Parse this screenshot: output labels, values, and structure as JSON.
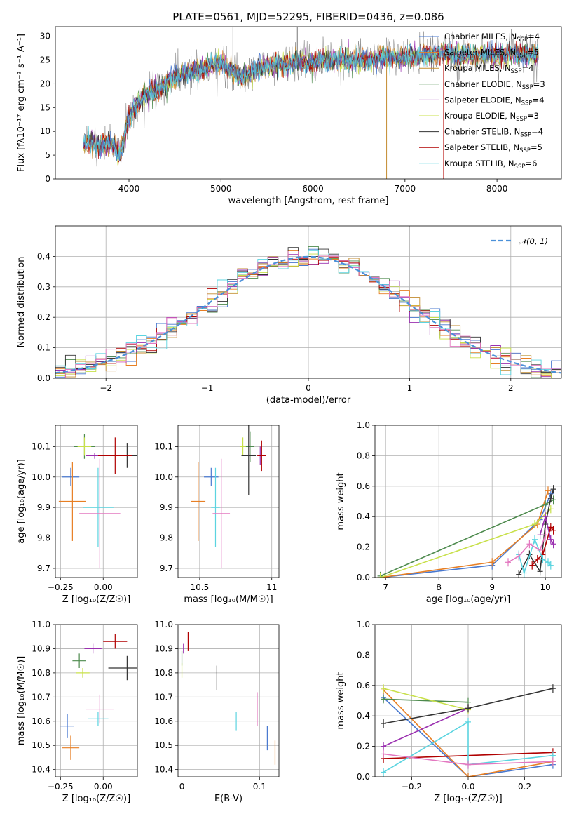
{
  "figure": {
    "title": "PLATE=0561, MJD=52295, FIBERID=0436, z=0.086"
  },
  "colors": {
    "series": [
      "#4878cf",
      "#e77f24",
      "#c38b2f",
      "#4d8a4d",
      "#9b30b0",
      "#c8e04a",
      "#333333",
      "#b00000",
      "#5bd4e0",
      "#e378c0",
      "#777777"
    ],
    "gaussian": "#4a90d9",
    "grid": "#b0b0b0"
  },
  "icons": [],
  "chart_data": [
    {
      "id": "spectrum",
      "type": "line",
      "xlabel": "wavelength [Angstrom, rest frame]",
      "ylabel": "Flux [fλ10⁻¹⁷ erg cm⁻² s⁻¹ A⁻¹]",
      "xlim": [
        3200,
        8700
      ],
      "ylim": [
        0,
        32
      ],
      "xticks": [
        4000,
        5000,
        6000,
        7000,
        8000
      ],
      "yticks": [
        0,
        5,
        10,
        15,
        20,
        25,
        30
      ],
      "grid": false,
      "legend_position": "right",
      "continuum": {
        "x": [
          3500,
          3600,
          3700,
          3800,
          3900,
          3950,
          4000,
          4100,
          4200,
          4300,
          4400,
          4500,
          4600,
          4800,
          5000,
          5100,
          5200,
          5400,
          5600,
          5800,
          6000,
          6200,
          6400,
          6600,
          6800,
          7000,
          7200,
          7400,
          7600,
          7800,
          8000,
          8200,
          8400
        ],
        "y": [
          7,
          8,
          7,
          7.5,
          5,
          9,
          13,
          16,
          18,
          18.5,
          20,
          21.5,
          22,
          23,
          24.5,
          23,
          21.5,
          23,
          24,
          24.5,
          24.5,
          25,
          25,
          25,
          25.5,
          25.5,
          26,
          26.5,
          26,
          26,
          26,
          26.5,
          26
        ]
      },
      "series": [
        {
          "name": "Chabrier MILES, N_SSP=4"
        },
        {
          "name": "Salpeter MILES, N_SSP=5"
        },
        {
          "name": "Kroupa MILES, N_SSP=4"
        },
        {
          "name": "Chabrier ELODIE, N_SSP=3"
        },
        {
          "name": "Salpeter ELODIE, N_SSP=4"
        },
        {
          "name": "Kroupa ELODIE, N_SSP=3"
        },
        {
          "name": "Chabrier STELIB, N_SSP=4"
        },
        {
          "name": "Salpeter STELIB, N_SSP=5"
        },
        {
          "name": "Kroupa STELIB, N_SSP=6"
        }
      ],
      "legend": [
        {
          "label": "Chabrier MILES, N",
          "sub": "SSP",
          "suffix": "=4"
        },
        {
          "label": "Salpeter MILES, N",
          "sub": "SSP",
          "suffix": "=5"
        },
        {
          "label": "Kroupa MILES, N",
          "sub": "SSP",
          "suffix": "=4"
        },
        {
          "label": "Chabrier ELODIE, N",
          "sub": "SSP",
          "suffix": "=3"
        },
        {
          "label": "Salpeter ELODIE, N",
          "sub": "SSP",
          "suffix": "=4"
        },
        {
          "label": "Kroupa ELODIE, N",
          "sub": "SSP",
          "suffix": "=3"
        },
        {
          "label": "Chabrier STELIB, N",
          "sub": "SSP",
          "suffix": "=4"
        },
        {
          "label": "Salpeter STELIB, N",
          "sub": "SSP",
          "suffix": "=5"
        },
        {
          "label": "Kroupa STELIB, N",
          "sub": "SSP",
          "suffix": "=6"
        }
      ],
      "spikes": [
        {
          "x": 5130,
          "y": 32,
          "series": 10
        },
        {
          "x": 5830,
          "y": 32,
          "series": 10
        },
        {
          "x": 6800,
          "y": 0,
          "series": 2
        },
        {
          "x": 7420,
          "y": 0,
          "series": 1
        },
        {
          "x": 7420,
          "y": 0,
          "series": 7
        }
      ]
    },
    {
      "id": "residuals",
      "type": "line",
      "xlabel": "(data-model)/error",
      "ylabel": "Normed distribution",
      "xlim": [
        -2.5,
        2.5
      ],
      "ylim": [
        0,
        0.5
      ],
      "xticks": [
        -2,
        -1,
        0,
        1,
        2
      ],
      "yticks": [
        0.0,
        0.1,
        0.2,
        0.3,
        0.4
      ],
      "grid": true,
      "legend_position": "top-right",
      "gaussian_label": "𝒩(0, 1)",
      "bin_width": 0.1
    },
    {
      "id": "age-vs-Z",
      "type": "scatter",
      "xlabel": "Z [log₁₀(Z/Z☉)]",
      "ylabel": "age  [log₁₀(age/yr)]",
      "xlim": [
        -0.28,
        0.2
      ],
      "ylim": [
        9.67,
        10.17
      ],
      "xticks": [
        -0.25,
        0.0
      ],
      "xticklabels": [
        "−0.25",
        "0.00"
      ],
      "yticks": [
        9.7,
        9.8,
        9.9,
        10.0,
        10.1
      ],
      "grid": true,
      "points": [
        {
          "x": -0.19,
          "xerr": 0.05,
          "y": 10.0,
          "yerr": 0.03,
          "series": 0
        },
        {
          "x": -0.18,
          "xerr": 0.08,
          "y": 9.92,
          "yerr": 0.13,
          "series": 1
        },
        {
          "x": -0.11,
          "xerr": 0.06,
          "y": 10.1,
          "yerr": 0.04,
          "series": 3
        },
        {
          "x": -0.05,
          "xerr": 0.05,
          "y": 10.07,
          "yerr": 0.01,
          "series": 4
        },
        {
          "x": -0.11,
          "xerr": 0.04,
          "y": 10.1,
          "yerr": 0.03,
          "series": 5
        },
        {
          "x": 0.14,
          "xerr": 0.09,
          "y": 10.07,
          "yerr": 0.04,
          "series": 6
        },
        {
          "x": 0.07,
          "xerr": 0.1,
          "y": 10.07,
          "yerr": 0.06,
          "series": 7
        },
        {
          "x": -0.03,
          "xerr": 0.09,
          "y": 9.9,
          "yerr": 0.13,
          "series": 8
        },
        {
          "x": -0.02,
          "xerr": 0.12,
          "y": 9.88,
          "yerr": 0.18,
          "series": 9
        }
      ]
    },
    {
      "id": "age-vs-mass",
      "type": "scatter",
      "xlabel": "mass [log₁₀(M/M☉)]",
      "ylabel": "",
      "xlim": [
        10.35,
        11.05
      ],
      "ylim": [
        9.67,
        10.17
      ],
      "xticks": [
        10.5,
        11.0
      ],
      "yticks": [
        9.7,
        9.8,
        9.9,
        10.0,
        10.1
      ],
      "grid": true,
      "points": [
        {
          "x": 10.58,
          "xerr": 0.05,
          "y": 10.0,
          "yerr": 0.03,
          "series": 0
        },
        {
          "x": 10.49,
          "xerr": 0.05,
          "y": 9.92,
          "yerr": 0.13,
          "series": 1
        },
        {
          "x": 10.85,
          "xerr": 0.03,
          "y": 10.1,
          "yerr": 0.05,
          "series": 3
        },
        {
          "x": 10.92,
          "xerr": 0.02,
          "y": 10.07,
          "yerr": 0.03,
          "series": 4
        },
        {
          "x": 10.8,
          "xerr": 0.02,
          "y": 10.1,
          "yerr": 0.03,
          "series": 5
        },
        {
          "x": 10.84,
          "xerr": 0.05,
          "y": 10.07,
          "yerr": 0.13,
          "series": 6
        },
        {
          "x": 10.93,
          "xerr": 0.03,
          "y": 10.07,
          "yerr": 0.05,
          "series": 7
        },
        {
          "x": 10.61,
          "xerr": 0.03,
          "y": 9.9,
          "yerr": 0.13,
          "series": 8
        },
        {
          "x": 10.65,
          "xerr": 0.06,
          "y": 9.88,
          "yerr": 0.18,
          "series": 9
        }
      ]
    },
    {
      "id": "massweight-vs-age",
      "type": "line",
      "xlabel": "age  [log₁₀(age/yr)]",
      "ylabel": "mass weight",
      "xlim": [
        6.8,
        10.3
      ],
      "ylim": [
        0,
        1
      ],
      "xticks": [
        7,
        8,
        9,
        10
      ],
      "yticks": [
        0.0,
        0.2,
        0.4,
        0.6,
        0.8,
        1.0
      ],
      "grid": true,
      "series": [
        {
          "series": 0,
          "points": [
            [
              6.9,
              0.0
            ],
            [
              9.0,
              0.08
            ],
            [
              9.9,
              0.38
            ],
            [
              10.1,
              0.55
            ]
          ]
        },
        {
          "series": 1,
          "points": [
            [
              6.9,
              0.0
            ],
            [
              9.0,
              0.1
            ],
            [
              9.85,
              0.35
            ],
            [
              10.05,
              0.57
            ]
          ]
        },
        {
          "series": 3,
          "points": [
            [
              6.9,
              0.01
            ],
            [
              10.0,
              0.48
            ],
            [
              10.15,
              0.51
            ]
          ]
        },
        {
          "series": 5,
          "points": [
            [
              6.9,
              0.0
            ],
            [
              9.8,
              0.35
            ],
            [
              10.1,
              0.45
            ]
          ]
        },
        {
          "series": 6,
          "points": [
            [
              9.5,
              0.02
            ],
            [
              9.7,
              0.15
            ],
            [
              9.9,
              0.04
            ],
            [
              10.0,
              0.35
            ],
            [
              10.1,
              0.52
            ],
            [
              10.15,
              0.58
            ]
          ]
        },
        {
          "series": 7,
          "points": [
            [
              9.75,
              0.08
            ],
            [
              9.85,
              0.12
            ],
            [
              9.95,
              0.15
            ],
            [
              10.1,
              0.33
            ],
            [
              10.15,
              0.31
            ]
          ]
        },
        {
          "series": 4,
          "points": [
            [
              9.9,
              0.28
            ],
            [
              10.0,
              0.4
            ],
            [
              10.1,
              0.25
            ],
            [
              10.15,
              0.22
            ]
          ]
        },
        {
          "series": 8,
          "points": [
            [
              9.5,
              0.15
            ],
            [
              9.6,
              0.03
            ],
            [
              9.8,
              0.25
            ],
            [
              9.95,
              0.12
            ],
            [
              10.05,
              0.1
            ],
            [
              10.1,
              0.08
            ]
          ]
        },
        {
          "series": 9,
          "points": [
            [
              9.3,
              0.1
            ],
            [
              9.5,
              0.14
            ],
            [
              9.7,
              0.22
            ],
            [
              9.9,
              0.18
            ],
            [
              10.0,
              0.28
            ]
          ]
        }
      ]
    },
    {
      "id": "mass-vs-Z",
      "type": "scatter",
      "xlabel": "Z [log₁₀(Z/Z☉)]",
      "ylabel": "mass [log₁₀(M/M☉)]",
      "xlim": [
        -0.28,
        0.2
      ],
      "ylim": [
        10.37,
        11.0
      ],
      "xticks": [
        -0.25,
        0.0
      ],
      "xticklabels": [
        "−0.25",
        "0.00"
      ],
      "yticks": [
        10.4,
        10.5,
        10.6,
        10.7,
        10.8,
        10.9,
        11.0
      ],
      "grid": true,
      "points": [
        {
          "x": -0.21,
          "xerr": 0.04,
          "y": 10.58,
          "yerr": 0.05,
          "series": 0
        },
        {
          "x": -0.19,
          "xerr": 0.05,
          "y": 10.49,
          "yerr": 0.05,
          "series": 1
        },
        {
          "x": -0.14,
          "xerr": 0.04,
          "y": 10.85,
          "yerr": 0.03,
          "series": 3
        },
        {
          "x": -0.06,
          "xerr": 0.05,
          "y": 10.9,
          "yerr": 0.02,
          "series": 4
        },
        {
          "x": -0.12,
          "xerr": 0.04,
          "y": 10.8,
          "yerr": 0.02,
          "series": 5
        },
        {
          "x": 0.14,
          "xerr": 0.11,
          "y": 10.82,
          "yerr": 0.05,
          "series": 6
        },
        {
          "x": 0.07,
          "xerr": 0.07,
          "y": 10.93,
          "yerr": 0.03,
          "series": 7
        },
        {
          "x": -0.03,
          "xerr": 0.06,
          "y": 10.61,
          "yerr": 0.03,
          "series": 8
        },
        {
          "x": -0.02,
          "xerr": 0.08,
          "y": 10.65,
          "yerr": 0.06,
          "series": 9
        }
      ]
    },
    {
      "id": "mass-vs-EBV",
      "type": "scatter",
      "xlabel": "E(B-V)",
      "ylabel": "",
      "xlim": [
        -0.005,
        0.125
      ],
      "ylim": [
        10.37,
        11.0
      ],
      "xticks": [
        0.0,
        0.1
      ],
      "yticks": [
        10.4,
        10.5,
        10.6,
        10.7,
        10.8,
        10.9,
        11.0
      ],
      "grid": true,
      "points": [
        {
          "x": 0.11,
          "xerr": 0,
          "y": 10.53,
          "yerr": 0.05,
          "series": 0
        },
        {
          "x": 0.12,
          "xerr": 0,
          "y": 10.47,
          "yerr": 0.05,
          "series": 1
        },
        {
          "x": 0.0,
          "xerr": 0,
          "y": 10.86,
          "yerr": 0.03,
          "series": 3
        },
        {
          "x": 0.002,
          "xerr": 0,
          "y": 10.9,
          "yerr": 0.02,
          "series": 4
        },
        {
          "x": 0.0,
          "xerr": 0,
          "y": 10.81,
          "yerr": 0.03,
          "series": 5
        },
        {
          "x": 0.045,
          "xerr": 0,
          "y": 10.78,
          "yerr": 0.05,
          "series": 6
        },
        {
          "x": 0.008,
          "xerr": 0,
          "y": 10.93,
          "yerr": 0.04,
          "series": 7
        },
        {
          "x": 0.07,
          "xerr": 0,
          "y": 10.6,
          "yerr": 0.04,
          "series": 8
        },
        {
          "x": 0.097,
          "xerr": 0,
          "y": 10.65,
          "yerr": 0.07,
          "series": 9
        }
      ]
    },
    {
      "id": "massweight-vs-Z",
      "type": "line",
      "xlabel": "Z [log₁₀(Z/Z☉)]",
      "ylabel": "mass weight",
      "xlim": [
        -0.33,
        0.33
      ],
      "ylim": [
        0,
        1
      ],
      "xticks": [
        -0.2,
        0.0,
        0.2
      ],
      "xticklabels": [
        "−0.2",
        "0.0",
        "0.2"
      ],
      "yticks": [
        0.0,
        0.2,
        0.4,
        0.6,
        0.8,
        1.0
      ],
      "grid": true,
      "series": [
        {
          "series": 0,
          "points": [
            [
              -0.3,
              0.52
            ],
            [
              0.0,
              0.0
            ],
            [
              0.3,
              0.08
            ]
          ]
        },
        {
          "series": 1,
          "points": [
            [
              -0.3,
              0.57
            ],
            [
              0.0,
              0.0
            ],
            [
              0.3,
              0.1
            ]
          ]
        },
        {
          "series": 3,
          "points": [
            [
              -0.3,
              0.51
            ],
            [
              0.0,
              0.49
            ]
          ]
        },
        {
          "series": 4,
          "points": [
            [
              -0.3,
              0.2
            ],
            [
              0.0,
              0.45
            ]
          ]
        },
        {
          "series": 5,
          "points": [
            [
              -0.3,
              0.58
            ],
            [
              0.0,
              0.44
            ]
          ]
        },
        {
          "series": 6,
          "points": [
            [
              -0.3,
              0.35
            ],
            [
              0.0,
              0.45
            ],
            [
              0.3,
              0.58
            ]
          ]
        },
        {
          "series": 7,
          "points": [
            [
              -0.3,
              0.12
            ],
            [
              0.3,
              0.16
            ]
          ]
        },
        {
          "series": 8,
          "points": [
            [
              -0.3,
              0.03
            ],
            [
              0.0,
              0.36
            ],
            [
              0.0,
              0.08
            ],
            [
              0.3,
              0.14
            ]
          ]
        },
        {
          "series": 9,
          "points": [
            [
              -0.3,
              0.15
            ],
            [
              0.0,
              0.08
            ],
            [
              0.3,
              0.1
            ]
          ]
        }
      ]
    }
  ]
}
